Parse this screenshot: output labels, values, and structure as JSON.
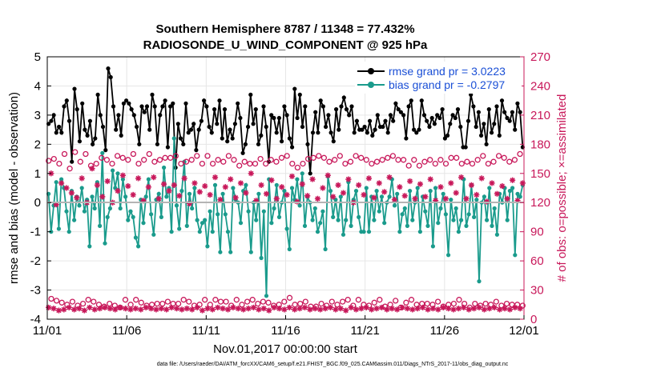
{
  "chart_data": {
    "type": "line",
    "title_line1": "Southern Hemisphere 8787 / 11348 = 77.432%",
    "title_line2": "RADIOSONDE_U_WIND_COMPONENT @ 925 hPa",
    "xlabel": "Nov.01,2017 00:00:00 start",
    "ylabel": "rmse and bias (model - observation)",
    "ylabel_right": "# of obs: o=possible; ×=assimilated",
    "footnote": "data file: /Users/raeder/DAI/ATM_forcXX/CAM6_setup/f.e21.FHIST_BGC.f09_025.CAM6assim.011/Diags_NTrS_2017-11/obs_diag_output.nc",
    "xlim": [
      0,
      30
    ],
    "ylim": [
      -4,
      5
    ],
    "ylim_right": [
      0,
      270
    ],
    "x_tick_values": [
      0,
      5,
      10,
      15,
      20,
      25,
      30
    ],
    "x_tick_labels": [
      "11/01",
      "11/06",
      "11/11",
      "11/16",
      "11/21",
      "11/26",
      "12/01"
    ],
    "y_ticks": [
      -4,
      -3,
      -2,
      -1,
      0,
      1,
      2,
      3,
      4,
      5
    ],
    "y_ticks_right": [
      0,
      30,
      60,
      90,
      120,
      150,
      180,
      210,
      240,
      270
    ],
    "grid": true,
    "legend_position": "top-right",
    "series": [
      {
        "name": "rmse",
        "legend": "rmse grand pr = 3.0223",
        "color": "#000000",
        "axis": "left",
        "values": [
          2.7,
          2.8,
          3.0,
          2.4,
          2.6,
          2.4,
          3.3,
          3.5,
          2.8,
          1.4,
          3.9,
          3.2,
          2.1,
          3.4,
          2.5,
          2.3,
          2.8,
          2.0,
          2.2,
          3.7,
          3.0,
          2.6,
          1.8,
          4.6,
          4.3,
          3.3,
          2.5,
          3.0,
          2.3,
          3.4,
          3.5,
          3.4,
          3.2,
          3.0,
          2.6,
          2.0,
          3.3,
          3.1,
          3.3,
          2.5,
          3.7,
          3.3,
          2.0,
          3.0,
          3.3,
          3.5,
          1.9,
          3.3,
          3.4,
          1.2,
          2.7,
          2.2,
          2.0,
          3.4,
          2.4,
          2.5,
          2.7,
          1.8,
          2.5,
          2.8,
          3.5,
          3.3,
          2.6,
          2.4,
          3.2,
          2.7,
          3.5,
          2.2,
          3.2,
          2.1,
          2.5,
          2.2,
          2.7,
          3.4,
          2.9,
          1.7,
          2.0,
          2.6,
          3.7,
          2.7,
          3.2,
          2.0,
          2.3,
          3.3,
          2.6,
          1.4,
          3.0,
          2.9,
          2.4,
          2.9,
          2.1,
          3.3,
          3.0,
          2.2,
          1.9,
          3.9,
          2.9,
          3.7,
          2.6,
          3.3,
          2.0,
          1.0,
          2.4,
          3.1,
          2.4,
          3.5,
          3.3,
          2.6,
          3.0,
          2.4,
          2.1,
          3.2,
          2.5,
          3.3,
          3.6,
          3.2,
          3.0,
          3.3,
          2.4,
          2.8,
          2.5,
          2.5,
          2.6,
          2.4,
          2.8,
          2.3,
          2.5,
          3.0,
          2.6,
          2.6,
          2.8,
          2.4,
          3.0,
          2.8,
          3.4,
          3.2,
          3.1,
          3.0,
          2.2,
          3.3,
          3.5,
          2.5,
          2.4,
          2.5,
          3.5,
          3.0,
          2.8,
          2.6,
          2.9,
          2.7,
          3.0,
          2.9,
          3.2,
          2.2,
          2.3,
          2.7,
          3.0,
          2.9,
          3.2,
          2.6,
          1.9,
          1.9,
          2.8,
          3.7,
          3.3,
          2.6,
          3.1,
          2.3,
          2.7,
          2.0,
          3.2,
          2.4,
          2.7,
          3.3,
          2.3,
          3.5,
          3.1,
          2.9,
          2.8,
          3.1,
          2.5,
          3.4,
          3.1,
          1.9
        ],
        "marker": "filled-circle"
      },
      {
        "name": "bias",
        "legend": "bias grand pr = -0.2797",
        "color": "#1a9b8c",
        "axis": "left",
        "values": [
          0.3,
          -1.0,
          -0.1,
          0.7,
          -0.9,
          0.8,
          0.5,
          -0.3,
          -1.0,
          0.4,
          -0.6,
          0.2,
          -0.1,
          0.5,
          -0.3,
          0.1,
          -1.5,
          0.2,
          -0.2,
          0.7,
          -0.8,
          1.7,
          -1.4,
          -0.5,
          -0.2,
          1.1,
          0.5,
          1.0,
          -0.2,
          0.8,
          0.2,
          -0.6,
          -0.3,
          -0.5,
          -1.2,
          -1.5,
          0.1,
          -0.7,
          0.2,
          0.8,
          -0.4,
          -1.1,
          0.1,
          0.3,
          -0.5,
          1.2,
          0.2,
          0.5,
          -1.0,
          2.2,
          -0.1,
          -0.9,
          0.4,
          1.4,
          -0.8,
          0.3,
          -0.2,
          0.5,
          -0.6,
          -1.0,
          -0.7,
          -0.6,
          -1.5,
          -0.3,
          -1.0,
          0.6,
          -0.4,
          -1.7,
          0.3,
          -0.4,
          -1.0,
          -1.7,
          0.5,
          0.1,
          0.0,
          -0.7,
          0.4,
          0.6,
          -0.3,
          -1.7,
          0.0,
          -0.6,
          0.3,
          -1.9,
          -0.3,
          -3.2,
          0.8,
          -0.7,
          -0.2,
          0.6,
          -0.5,
          0.0,
          0.4,
          -0.9,
          -1.6,
          0.5,
          0.1,
          0.8,
          -0.1,
          1.0,
          -0.8,
          0.2,
          0.0,
          -0.6,
          -0.2,
          -1.0,
          -0.7,
          -0.3,
          -1.6,
          0.9,
          0.4,
          -0.5,
          0.1,
          -0.6,
          0.2,
          -1.1,
          -0.6,
          0.7,
          -0.8,
          0.1,
          0.4,
          -0.5,
          -1.0,
          -1.0,
          0.5,
          -1.0,
          0.2,
          -0.6,
          0.4,
          -0.3,
          0.2,
          -0.7,
          0.0,
          0.2,
          0.8,
          -0.1,
          0.3,
          -1.0,
          -0.4,
          -0.2,
          -0.8,
          0.4,
          -0.6,
          0.0,
          0.5,
          -1.0,
          0.2,
          -0.3,
          -0.8,
          0.4,
          -1.5,
          0.5,
          -0.7,
          -0.2,
          0.3,
          -0.4,
          -1.8,
          0.1,
          -0.6,
          -0.2,
          -1.0,
          -0.6,
          0.8,
          -0.8,
          -0.4,
          0.6,
          -0.5,
          0.1,
          -2.7,
          0.0,
          0.2,
          -0.6,
          0.5,
          -0.8,
          -0.2,
          -1.1,
          0.3,
          0.0,
          0.5,
          -0.6,
          0.4,
          0.5,
          -1.8,
          0.3,
          0.2,
          0.6
        ],
        "marker": "filled-circle"
      },
      {
        "name": "possible",
        "color": "#c8185a",
        "axis": "right",
        "marker": "open-circle",
        "values": [
          163,
          21,
          165,
          19,
          160,
          17,
          170,
          15,
          155,
          18,
          172,
          14,
          162,
          16,
          170,
          20,
          158,
          18,
          160,
          15,
          166,
          13,
          164,
          16,
          160,
          14,
          168,
          12,
          166,
          20,
          164,
          15,
          170,
          20,
          160,
          17,
          164,
          14,
          170,
          15,
          162,
          16,
          164,
          16,
          166,
          18,
          166,
          16,
          168,
          16,
          160,
          20,
          162,
          18,
          164,
          14,
          168,
          15,
          160,
          20,
          168,
          15,
          160,
          20,
          164,
          18,
          162,
          18,
          168,
          14,
          164,
          20,
          158,
          15,
          162,
          18,
          160,
          20,
          160,
          16,
          165,
          18,
          160,
          17,
          164,
          14,
          162,
          15,
          166,
          18,
          168,
          22,
          160,
          15,
          156,
          16,
          160,
          18,
          165,
          13,
          166,
          13,
          168,
          16,
          166,
          14,
          162,
          18,
          164,
          15,
          168,
          18,
          160,
          20,
          162,
          14,
          168,
          20,
          166,
          15,
          164,
          14,
          160,
          17,
          162,
          20,
          164,
          13,
          166,
          15,
          168,
          19,
          164,
          12,
          164,
          17,
          158,
          20,
          164,
          15,
          158,
          16,
          162,
          16,
          164,
          15,
          160,
          18,
          164,
          13,
          160,
          15,
          166,
          16,
          166,
          20,
          160,
          16,
          162,
          12,
          160,
          16,
          164,
          14,
          168,
          16,
          160,
          15,
          162,
          18,
          168,
          14,
          166,
          16,
          162,
          15,
          164,
          15,
          170,
          14
        ]
      },
      {
        "name": "assimilated",
        "color": "#c8185a",
        "axis": "right",
        "marker": "asterisk",
        "values": [
          12,
          150,
          11,
          118,
          9,
          140,
          10,
          135,
          12,
          130,
          10,
          125,
          11,
          145,
          9,
          120,
          12,
          155,
          10,
          138,
          11,
          126,
          12,
          142,
          11,
          120,
          10,
          132,
          12,
          148,
          11,
          137,
          10,
          128,
          11,
          145,
          10,
          122,
          12,
          136,
          11,
          146,
          10,
          124,
          11,
          139,
          10,
          132,
          12,
          138,
          11,
          127,
          10,
          145,
          11,
          119,
          10,
          140,
          12,
          131,
          9,
          137,
          11,
          128,
          10,
          146,
          12,
          123,
          11,
          136,
          10,
          144,
          12,
          125,
          11,
          140,
          10,
          130,
          11,
          150,
          12,
          122,
          10,
          138,
          11,
          129,
          9,
          143,
          12,
          124,
          11,
          136,
          10,
          128,
          12,
          147,
          10,
          121,
          11,
          139,
          12,
          127,
          10,
          144,
          11,
          124,
          10,
          135,
          11,
          148,
          12,
          126,
          10,
          138,
          11,
          130,
          9,
          144,
          12,
          120,
          10,
          138,
          11,
          128,
          12,
          145,
          10,
          125,
          11,
          140,
          12,
          131,
          10,
          146,
          11,
          123,
          10,
          136,
          12,
          127,
          11,
          142,
          10,
          124,
          11,
          139,
          12,
          126,
          10,
          144,
          11,
          122,
          10,
          136,
          12,
          124,
          11,
          140,
          10,
          130,
          11,
          146,
          12,
          124,
          10,
          138,
          11,
          128,
          12,
          145,
          10,
          121,
          11,
          140,
          12,
          129,
          10,
          137,
          11,
          124,
          10,
          143,
          12,
          122,
          11,
          140
        ]
      }
    ]
  }
}
